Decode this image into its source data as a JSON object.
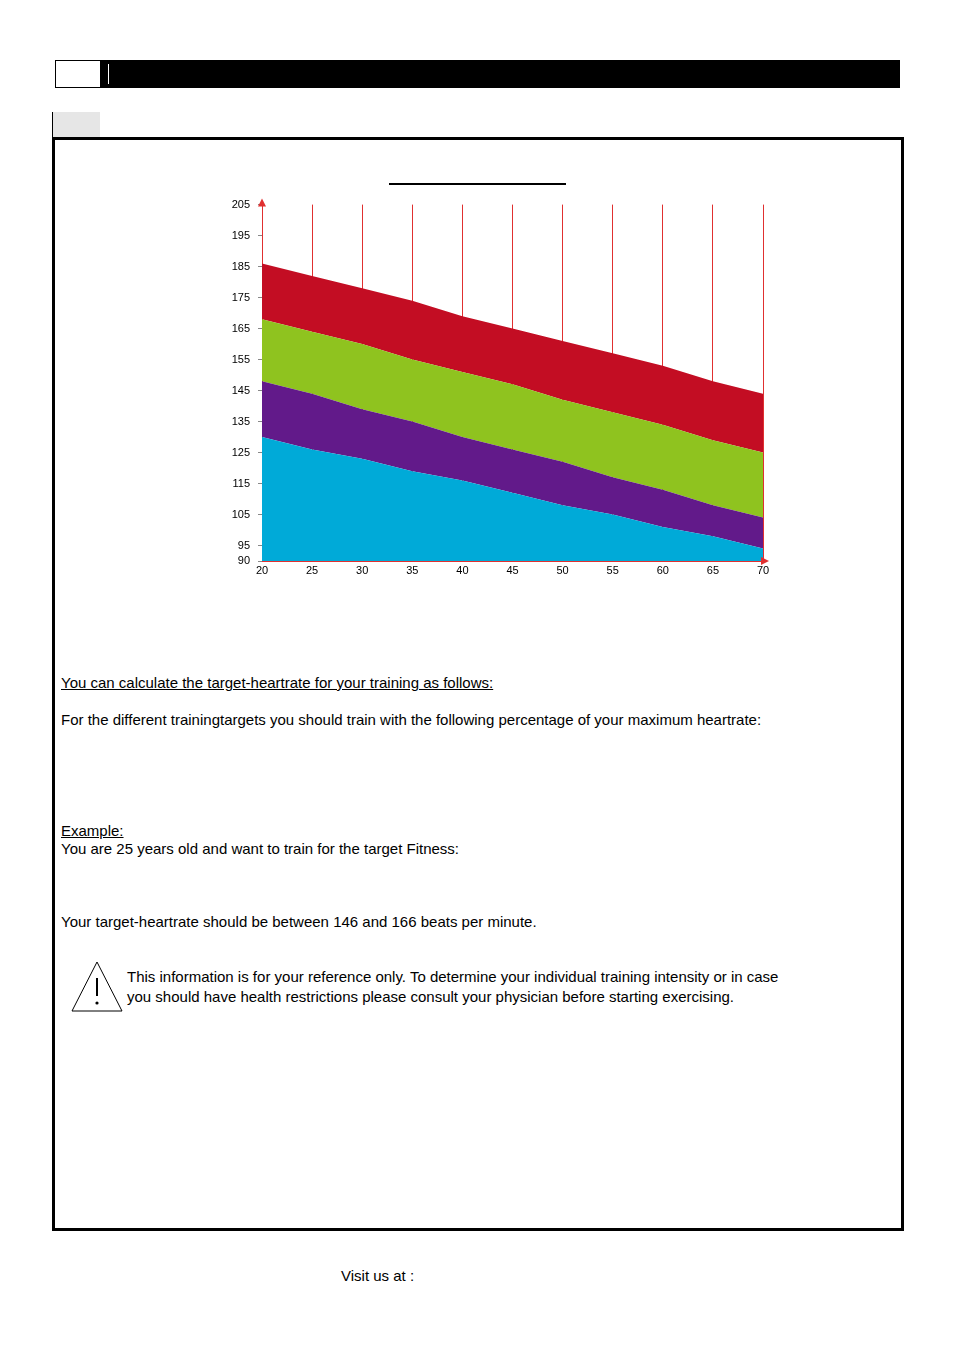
{
  "texts": {
    "calc_heading": "You can calculate the target-heartrate for your training as follows:",
    "percentage_intro": "For the different trainingtargets you should train with the following percentage of your maximum heartrate:",
    "example_heading": "Example:",
    "example_text": "You are 25 years old and want to train for the target Fitness:",
    "result_text": "Your target-heartrate should be between 146 and 166 beats per minute.",
    "warning_lines": [
      "This information is for your reference only. To determine your individual training intensity or in case",
      " you should have health restrictions please consult your physician before starting exercising."
    ],
    "footer": "Visit us at :"
  },
  "chart_data": {
    "type": "area",
    "x": [
      20,
      25,
      30,
      35,
      40,
      45,
      50,
      55,
      60,
      65,
      70
    ],
    "series": [
      {
        "color": "#00aad8",
        "values": [
          130,
          126,
          123,
          119,
          116,
          112,
          108,
          105,
          101,
          98,
          94
        ]
      },
      {
        "color": "#621a8a",
        "values": [
          148,
          144,
          139,
          135,
          130,
          126,
          122,
          117,
          113,
          108,
          104
        ]
      },
      {
        "color": "#8fc31f",
        "values": [
          168,
          164,
          160,
          155,
          151,
          147,
          142,
          138,
          134,
          129,
          125
        ]
      },
      {
        "color": "#c30d23",
        "values": [
          186,
          182,
          178,
          174,
          169,
          165,
          161,
          157,
          153,
          148,
          144
        ]
      }
    ],
    "xlim": [
      20,
      70
    ],
    "xticks": [
      20,
      25,
      30,
      35,
      40,
      45,
      50,
      55,
      60,
      65,
      70
    ],
    "ylim": [
      90,
      205
    ],
    "yticks": [
      90,
      95,
      105,
      115,
      125,
      135,
      145,
      155,
      165,
      175,
      185,
      195,
      205
    ],
    "grid": "x"
  }
}
